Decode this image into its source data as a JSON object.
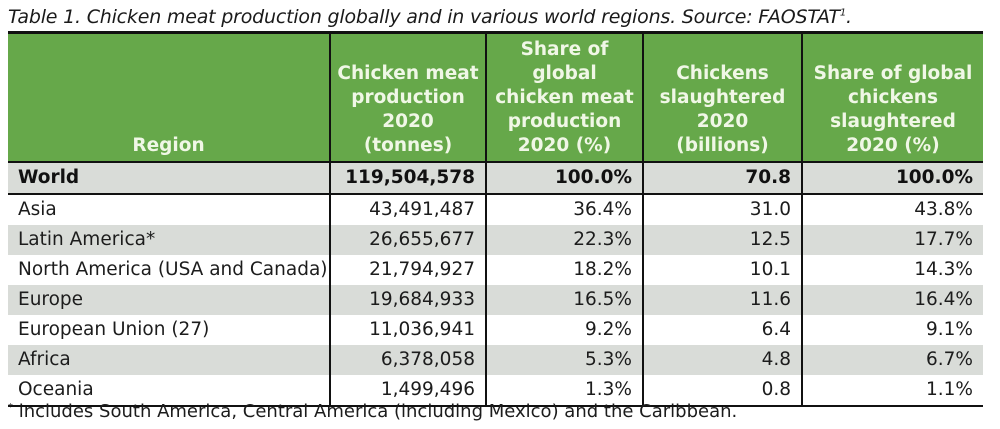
{
  "caption": {
    "text": "Table 1. Chicken meat production globally and in various world regions. Source: FAOSTAT",
    "superscript": "1",
    "end": "."
  },
  "table": {
    "headers": [
      "Region",
      "Chicken meat production 2020 (tonnes)",
      "Share of global chicken meat production 2020 (%)",
      "Chickens slaughtered 2020 (billions)",
      "Share of global chickens slaughtered 2020 (%)"
    ],
    "header_lines": [
      [
        "Region"
      ],
      [
        "Chicken meat",
        "production",
        "2020",
        "(tonnes)"
      ],
      [
        "Share of",
        "global",
        "chicken meat",
        "production",
        "2020 (%)"
      ],
      [
        "Chickens",
        "slaughtered",
        "2020",
        "(billions)"
      ],
      [
        "Share of global",
        "chickens",
        "slaughtered",
        "2020 (%)"
      ]
    ],
    "rows": [
      [
        "World",
        "119,504,578",
        "100.0%",
        "70.8",
        "100.0%"
      ],
      [
        "Asia",
        "43,491,487",
        "36.4%",
        "31.0",
        "43.8%"
      ],
      [
        "Latin America*",
        "26,655,677",
        "22.3%",
        "12.5",
        "17.7%"
      ],
      [
        "North America (USA and Canada)",
        "21,794,927",
        "18.2%",
        "10.1",
        "14.3%"
      ],
      [
        "Europe",
        "19,684,933",
        "16.5%",
        "11.6",
        "16.4%"
      ],
      [
        "European Union (27)",
        "11,036,941",
        "9.2%",
        "6.4",
        "9.1%"
      ],
      [
        "Africa",
        "6,378,058",
        "5.3%",
        "4.8",
        "6.7%"
      ],
      [
        "Oceania",
        "1,499,496",
        "1.3%",
        "0.8",
        "1.1%"
      ]
    ]
  },
  "footnote": {
    "marker": "*",
    "text": " includes South America, Central America (including Mexico) and the Caribbean."
  },
  "colors": {
    "header_bg": "#66a84a",
    "header_text": "#f0f7e6",
    "stripe_bg": "#d9dcd8"
  }
}
